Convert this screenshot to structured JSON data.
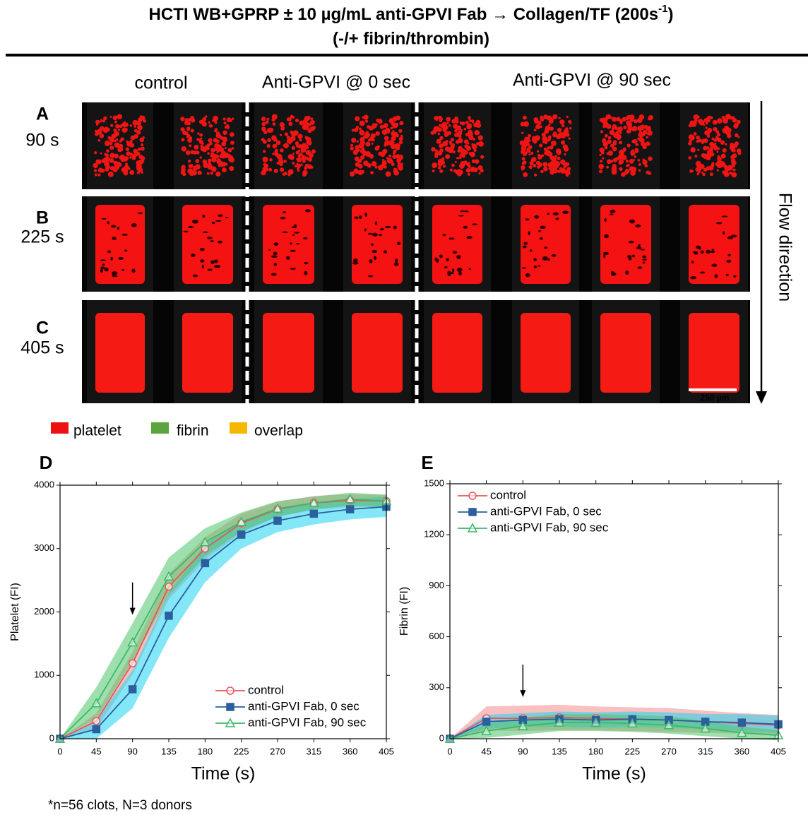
{
  "figure": {
    "title_main": "HCTI WB+GPRP ± 10 µg/mL anti-GPVI Fab → Collagen/TF (200s",
    "title_sup": "-1",
    "title_close": ")",
    "subtitle": "(-/+ fibrin/thrombin)",
    "columns": [
      "control",
      "Anti-GPVI @ 0 sec",
      "Anti-GPVI @ 90 sec"
    ],
    "rows": [
      {
        "label": "A",
        "time": "90 s"
      },
      {
        "label": "B",
        "time": "225 s"
      },
      {
        "label": "C",
        "time": "405 s"
      }
    ],
    "flow_label": "Flow direction",
    "scale_bar": "250 µm",
    "channel_legend": [
      {
        "name": "platelet",
        "color": "#ee1111"
      },
      {
        "name": "fibrin",
        "color": "#5aa63c"
      },
      {
        "name": "overlap",
        "color": "#f5b800"
      }
    ],
    "footnote": "*n=56 clots, N=3 donors"
  },
  "chart_data": [
    {
      "type": "line",
      "panel": "D",
      "x_label": "Time (s)",
      "y_label": "Platelet (FI)",
      "x": [
        0,
        45,
        90,
        135,
        180,
        225,
        270,
        315,
        360,
        405
      ],
      "xlim": [
        0,
        405
      ],
      "xticks": [
        0,
        45,
        90,
        135,
        180,
        225,
        270,
        315,
        360,
        405
      ],
      "ylim": [
        0,
        4000
      ],
      "yticks": [
        0,
        1000,
        2000,
        3000,
        4000
      ],
      "legend": "bottom-right",
      "arrow_x": 90,
      "series": [
        {
          "name": "control",
          "color": "#e8555a",
          "band_color": "#f28c8c",
          "marker": "circle",
          "values": [
            0,
            280,
            1190,
            2400,
            3000,
            3400,
            3620,
            3720,
            3760,
            3750
          ],
          "errors": [
            0,
            120,
            180,
            200,
            180,
            150,
            120,
            110,
            100,
            100
          ]
        },
        {
          "name": "anti-GPVI Fab, 0 sec",
          "color": "#2b5f9e",
          "band_color": "#1fd3f0",
          "marker": "square",
          "values": [
            0,
            150,
            780,
            1940,
            2770,
            3220,
            3440,
            3550,
            3620,
            3660
          ],
          "errors": [
            0,
            150,
            300,
            350,
            300,
            220,
            180,
            170,
            160,
            160
          ]
        },
        {
          "name": "anti-GPVI Fab, 90 sec",
          "color": "#3cb96a",
          "band_color": "#4cc46a",
          "marker": "triangle",
          "values": [
            0,
            560,
            1520,
            2560,
            3100,
            3420,
            3630,
            3720,
            3780,
            3750
          ],
          "errors": [
            0,
            250,
            300,
            300,
            220,
            150,
            120,
            100,
            100,
            100
          ]
        }
      ]
    },
    {
      "type": "line",
      "panel": "E",
      "x_label": "Time (s)",
      "y_label": "Fibrin (FI)",
      "x": [
        0,
        45,
        90,
        135,
        180,
        225,
        270,
        315,
        360,
        405
      ],
      "xlim": [
        0,
        405
      ],
      "xticks": [
        0,
        45,
        90,
        135,
        180,
        225,
        270,
        315,
        360,
        405
      ],
      "ylim": [
        0,
        1500
      ],
      "yticks": [
        0,
        300,
        600,
        900,
        1200,
        1500
      ],
      "legend": "top-left",
      "arrow_x": 90,
      "series": [
        {
          "name": "control",
          "color": "#e8555a",
          "band_color": "#f28c8c",
          "marker": "circle",
          "values": [
            0,
            120,
            120,
            125,
            120,
            115,
            110,
            100,
            90,
            80
          ],
          "errors": [
            0,
            70,
            75,
            75,
            70,
            70,
            70,
            65,
            60,
            60
          ]
        },
        {
          "name": "anti-GPVI Fab, 0 sec",
          "color": "#2b5f9e",
          "band_color": "#1fd3f0",
          "marker": "square",
          "values": [
            0,
            100,
            110,
            115,
            110,
            115,
            110,
            100,
            95,
            85
          ],
          "errors": [
            0,
            40,
            40,
            45,
            45,
            45,
            45,
            45,
            50,
            50
          ]
        },
        {
          "name": "anti-GPVI Fab, 90 sec",
          "color": "#3cb96a",
          "band_color": "#4cc46a",
          "marker": "triangle",
          "values": [
            0,
            45,
            75,
            95,
            95,
            90,
            80,
            60,
            35,
            20
          ],
          "errors": [
            0,
            40,
            50,
            50,
            50,
            50,
            50,
            45,
            35,
            30
          ]
        }
      ]
    }
  ]
}
